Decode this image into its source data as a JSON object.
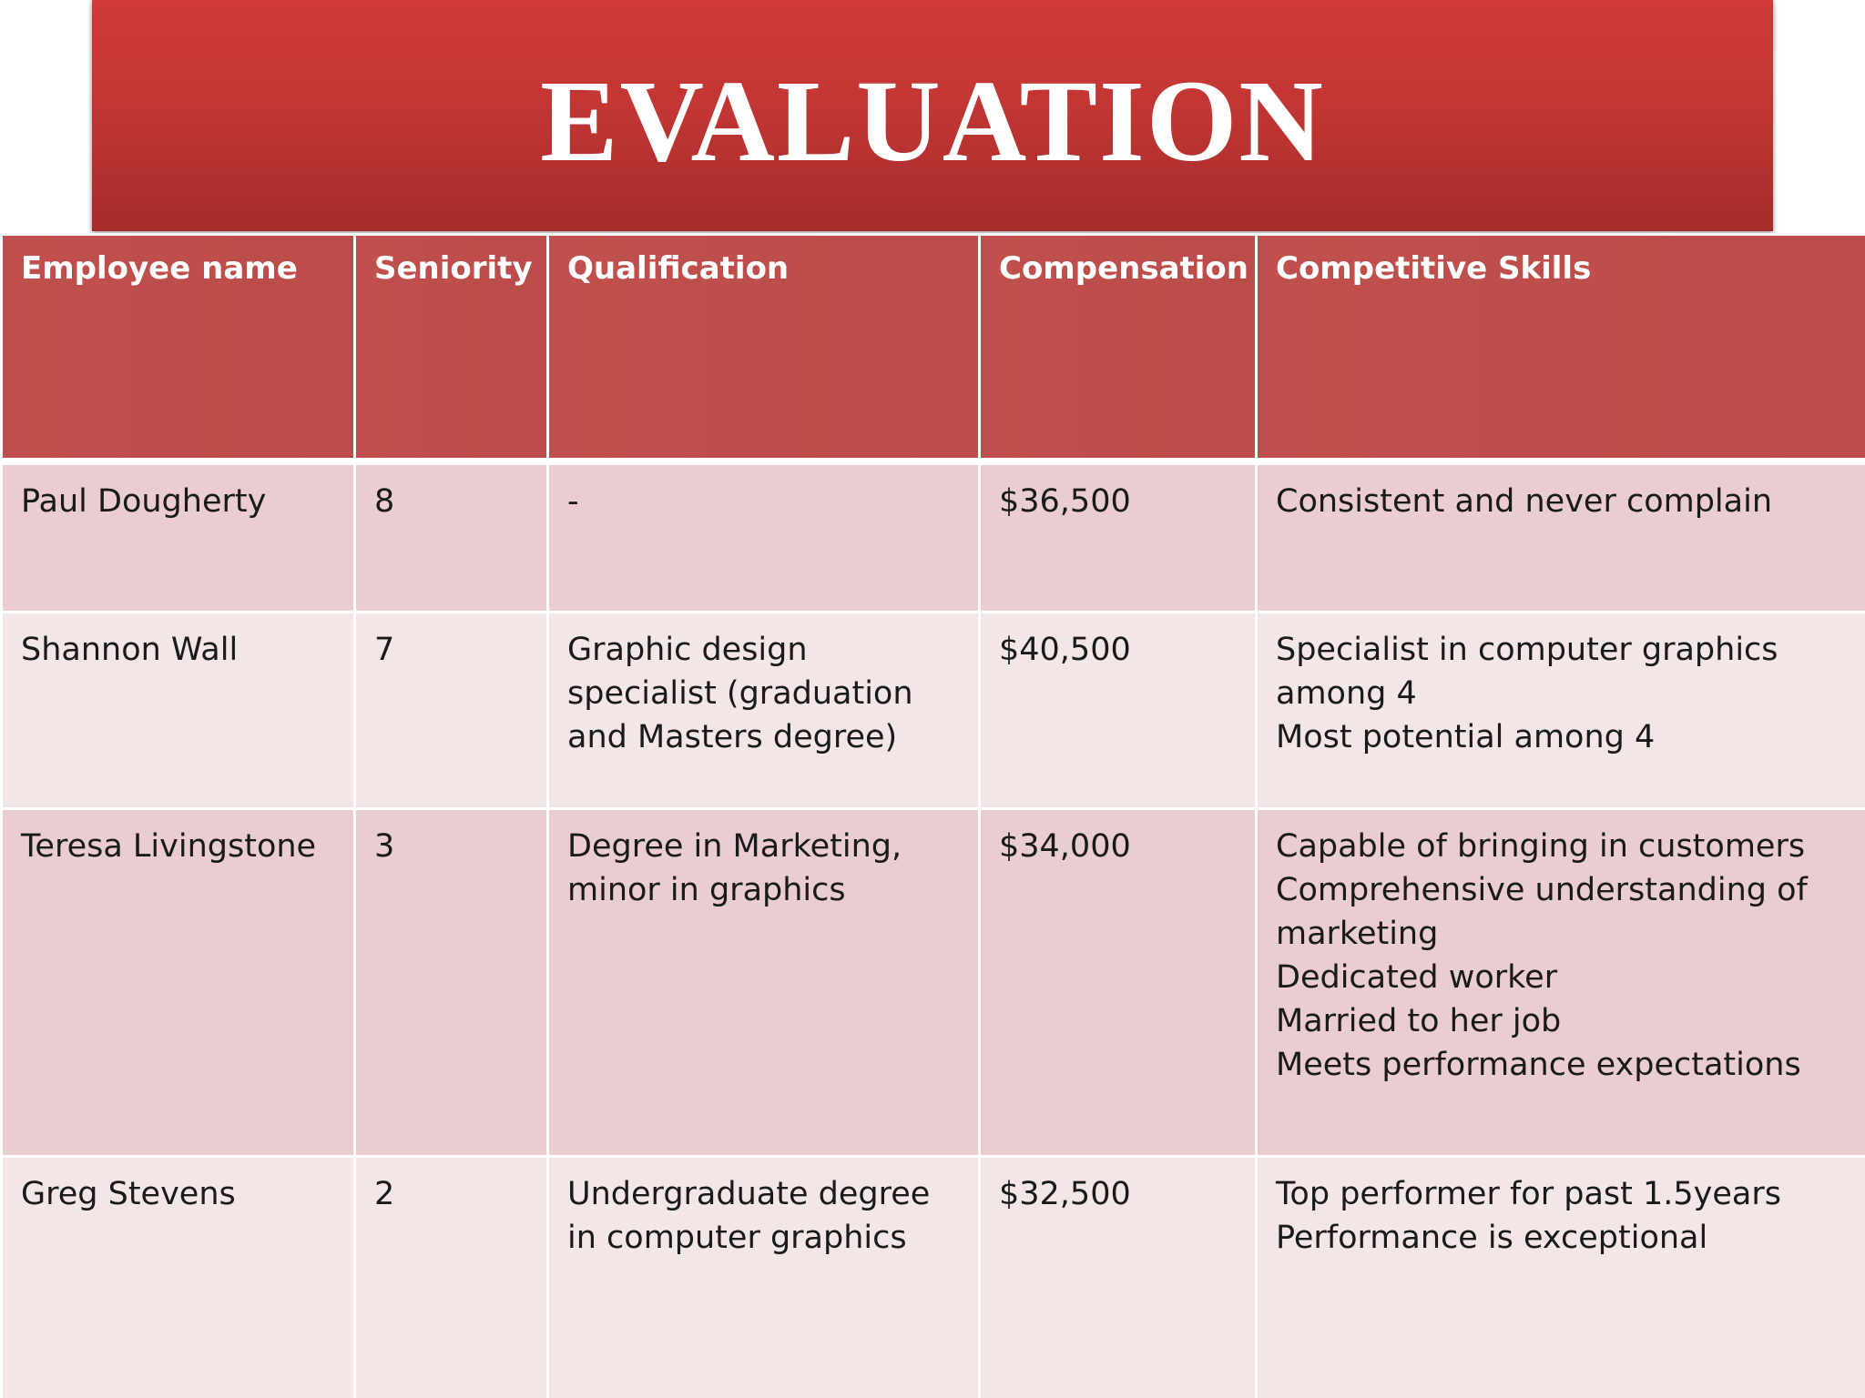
{
  "title": "EVALUATION",
  "table": {
    "headers": [
      "Employee name",
      "Seniority",
      "Qualification",
      "Compensation",
      "Competitive Skills"
    ],
    "rows": [
      {
        "name": "Paul Dougherty",
        "seniority": "8",
        "qualification": "-",
        "compensation": "$36,500",
        "skills": [
          "Consistent and never complain"
        ]
      },
      {
        "name": "Shannon Wall",
        "seniority": "7",
        "qualification": "Graphic design specialist (graduation and Masters degree)",
        "compensation": "$40,500",
        "skills": [
          "Specialist in computer graphics among 4",
          "Most potential among 4"
        ]
      },
      {
        "name": "Teresa Livingstone",
        "seniority": "3",
        "qualification": "Degree in Marketing, minor in graphics",
        "compensation": "$34,000",
        "skills": [
          "Capable of bringing in customers",
          "Comprehensive understanding of marketing",
          "Dedicated worker",
          "Married to her job",
          "Meets performance expectations"
        ]
      },
      {
        "name": "Greg Stevens",
        "seniority": "2",
        "qualification": "Undergraduate degree in computer graphics",
        "compensation": "$32,500",
        "skills": [
          "Top performer for past 1.5years",
          "Performance is exceptional"
        ]
      }
    ]
  },
  "colors": {
    "banner": "#c23634",
    "header": "#c0504d",
    "row_odd": "#e9cdd0",
    "row_even": "#f3e6e7"
  }
}
